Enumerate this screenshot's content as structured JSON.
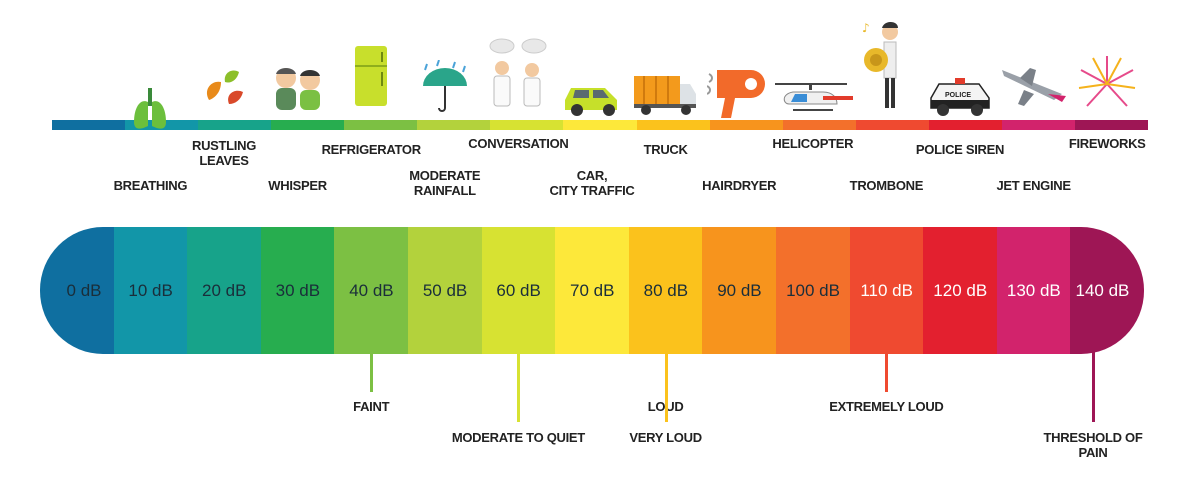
{
  "scale": [
    {
      "label": "0 dB",
      "color": "#0f6fa0",
      "text_color": "#1a2e3a"
    },
    {
      "label": "10 dB",
      "color": "#1296a8",
      "text_color": "#1a2e3a"
    },
    {
      "label": "20 dB",
      "color": "#17a38a",
      "text_color": "#1a2e3a"
    },
    {
      "label": "30 dB",
      "color": "#27ad4f",
      "text_color": "#1a2e3a"
    },
    {
      "label": "40 dB",
      "color": "#7cc043",
      "text_color": "#1a2e3a"
    },
    {
      "label": "50 dB",
      "color": "#b3d23c",
      "text_color": "#1a2e3a"
    },
    {
      "label": "60 dB",
      "color": "#d7e232",
      "text_color": "#1a2e3a"
    },
    {
      "label": "70 dB",
      "color": "#fde83a",
      "text_color": "#1a2e3a"
    },
    {
      "label": "80 dB",
      "color": "#fbc21c",
      "text_color": "#1a2e3a"
    },
    {
      "label": "90 dB",
      "color": "#f7941d",
      "text_color": "#1a2e3a"
    },
    {
      "label": "100 dB",
      "color": "#f3702b",
      "text_color": "#1a2e3a"
    },
    {
      "label": "110 dB",
      "color": "#ef4a30",
      "text_color": "#ffffff"
    },
    {
      "label": "120 dB",
      "color": "#e3202f",
      "text_color": "#ffffff"
    },
    {
      "label": "130 dB",
      "color": "#d2236c",
      "text_color": "#ffffff"
    },
    {
      "label": "140 dB",
      "color": "#9e1655",
      "text_color": "#ffffff"
    }
  ],
  "sources": [
    {
      "level": 1,
      "text": "BREATHING",
      "row": "low"
    },
    {
      "level": 2,
      "text": "RUSTLING\nLEAVES",
      "row": "high"
    },
    {
      "level": 3,
      "text": "WHISPER",
      "row": "low"
    },
    {
      "level": 4,
      "text": "REFRIGERATOR",
      "row": "mid"
    },
    {
      "level": 5,
      "text": "MODERATE\nRAINFALL",
      "row": "midlow"
    },
    {
      "level": 6,
      "text": "CONVERSATION",
      "row": "top"
    },
    {
      "level": 7,
      "text": "CAR,\nCITY TRAFFIC",
      "row": "midlow"
    },
    {
      "level": 8,
      "text": "TRUCK",
      "row": "mid"
    },
    {
      "level": 9,
      "text": "HAIRDRYER",
      "row": "low"
    },
    {
      "level": 10,
      "text": "HELICOPTER",
      "row": "top"
    },
    {
      "level": 11,
      "text": "TROMBONE",
      "row": "low"
    },
    {
      "level": 12,
      "text": "POLICE SIREN",
      "row": "mid"
    },
    {
      "level": 13,
      "text": "JET ENGINE",
      "row": "low"
    },
    {
      "level": 14,
      "text": "FIREWORKS",
      "row": "top"
    }
  ],
  "thresholds": [
    {
      "text": "FAINT",
      "level": 4.5,
      "color": "#7cc043",
      "depth": "short"
    },
    {
      "text": "MODERATE TO QUIET",
      "level": 6.5,
      "color": "#d7e232",
      "depth": "long"
    },
    {
      "text": "LOUD",
      "level": 8.5,
      "color": "#fde83a",
      "depth": "short"
    },
    {
      "text": "VERY LOUD",
      "level": 8.5,
      "color": "#fbc21c",
      "depth": "long"
    },
    {
      "text": "EXTREMELY LOUD",
      "level": 11.5,
      "color": "#ef4a30",
      "depth": "short"
    },
    {
      "text": "THRESHOLD OF PAIN",
      "level": 14,
      "color": "#9e1655",
      "depth": "long"
    }
  ],
  "icons": [
    {
      "level": 1,
      "name": "lungs-icon"
    },
    {
      "level": 2,
      "name": "leaves-icon"
    },
    {
      "level": 3,
      "name": "whisper-people-icon"
    },
    {
      "level": 4,
      "name": "refrigerator-icon"
    },
    {
      "level": 5,
      "name": "umbrella-rain-icon"
    },
    {
      "level": 6,
      "name": "conversation-people-icon"
    },
    {
      "level": 7,
      "name": "car-icon"
    },
    {
      "level": 8,
      "name": "truck-icon"
    },
    {
      "level": 9,
      "name": "hairdryer-icon"
    },
    {
      "level": 10,
      "name": "helicopter-icon"
    },
    {
      "level": 11,
      "name": "trombone-player-icon"
    },
    {
      "level": 12,
      "name": "police-car-icon"
    },
    {
      "level": 13,
      "name": "jet-icon"
    },
    {
      "level": 14,
      "name": "fireworks-icon"
    }
  ],
  "police_car_text": "POLICE"
}
